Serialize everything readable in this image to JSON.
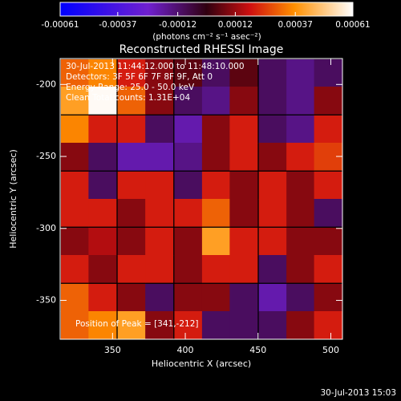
{
  "chart_data": {
    "type": "heatmap",
    "title": "Reconstructed RHESSI Image",
    "xlabel": "Heliocentric X (arcsec)",
    "ylabel": "Heliocentric Y (arcsec)",
    "colorbar_label": "(photons cm⁻² s⁻¹ asec⁻²)",
    "colorbar_lim": [
      -0.00061,
      0.00061
    ],
    "colorbar_ticks": [
      -0.00061,
      -0.00037,
      -0.00012,
      0.00012,
      0.00037,
      0.00061
    ],
    "annotations": [
      "30-Jul-2013 11:44:12.000 to 11:48:10.000",
      "Detectors: 3F 5F 6F 7F 8F 9F, Att 0",
      "Energy Range: 25.0 - 50.0 keV",
      "Clean  Total counts: 1.31E+04"
    ],
    "peak_label": "Position of Peak = [341,-212]",
    "timestamp": "30-Jul-2013 15:03",
    "xlim": [
      314,
      508
    ],
    "xticks": [
      350,
      400,
      450,
      500
    ],
    "ylim": [
      -377,
      -182
    ],
    "yticks": [
      -200,
      -250,
      -300,
      -350
    ],
    "x": [
      324,
      343,
      363,
      382,
      402,
      421,
      440,
      460,
      479,
      498
    ],
    "y": [
      -192,
      -211,
      -231,
      -250,
      -270,
      -289,
      -309,
      -328,
      -348,
      -367
    ],
    "z": [
      [
        0.0003,
        0.00035,
        0.0002,
        0.0001,
        5e-05,
        -0.0001,
        5e-05,
        -0.0001,
        -0.00015,
        -0.0001
      ],
      [
        0.0004,
        0.0006,
        0.0003,
        0.0001,
        -0.0001,
        -0.00015,
        0.0001,
        -0.0001,
        -0.00015,
        0.0001
      ],
      [
        0.00035,
        0.0002,
        0.0002,
        -0.0001,
        -0.0002,
        0.0001,
        0.0002,
        -0.0001,
        -0.00015,
        0.0002
      ],
      [
        0.0001,
        -0.0001,
        -0.0002,
        -0.0002,
        -0.00015,
        0.0001,
        0.0002,
        0.0001,
        0.0002,
        0.00025
      ],
      [
        0.0002,
        -0.0001,
        0.0002,
        0.0002,
        -0.0001,
        0.0002,
        0.0001,
        0.0002,
        0.0001,
        0.0002
      ],
      [
        0.0002,
        0.0002,
        0.0001,
        0.0002,
        0.0002,
        0.0003,
        0.0001,
        0.0002,
        0.0001,
        -0.0001
      ],
      [
        0.0001,
        0.00015,
        0.0001,
        0.0002,
        0.0001,
        0.0004,
        0.0002,
        0.0002,
        0.0001,
        0.0001
      ],
      [
        0.0002,
        0.0001,
        0.0002,
        0.0002,
        0.0001,
        0.0002,
        0.0002,
        -0.0001,
        0.0001,
        0.0002
      ],
      [
        0.0003,
        0.0002,
        0.0001,
        -0.0001,
        0.0001,
        0.0001,
        -0.0001,
        -0.0002,
        -0.0001,
        0.0001
      ],
      [
        0.0003,
        0.00035,
        0.0004,
        0.0001,
        0.0002,
        -0.0001,
        -0.0001,
        -0.0001,
        0.0001,
        0.0002
      ]
    ]
  }
}
